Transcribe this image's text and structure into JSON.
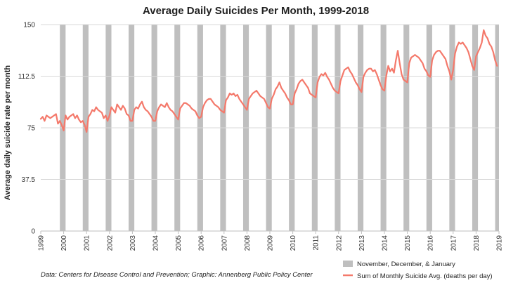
{
  "chart_data": {
    "type": "line",
    "title": "Average Daily Suicides Per Month, 1999-2018",
    "ylabel": "Average daily suicide rate per month",
    "xlabel": "",
    "ylim": [
      0,
      150
    ],
    "yticks": [
      0,
      37.5,
      75,
      112.5,
      150
    ],
    "ytick_labels": [
      "0",
      "37.5",
      "75",
      "112.5",
      "150"
    ],
    "x_range": [
      "1999-01",
      "2019-01"
    ],
    "xticks": [
      "1999",
      "2000",
      "2001",
      "2002",
      "2003",
      "2004",
      "2005",
      "2006",
      "2007",
      "2008",
      "2009",
      "2010",
      "2011",
      "2012",
      "2013",
      "2014",
      "2015",
      "2016",
      "2017",
      "2018",
      "2019"
    ],
    "grid": "horizontal",
    "legend_position": "bottom-right",
    "shaded_series": {
      "name": "November, December, & January",
      "color": "#bfbfbf",
      "periods": [
        [
          "1999-11",
          "2000-01"
        ],
        [
          "2000-11",
          "2001-01"
        ],
        [
          "2001-11",
          "2002-01"
        ],
        [
          "2002-11",
          "2003-01"
        ],
        [
          "2003-11",
          "2004-01"
        ],
        [
          "2004-11",
          "2005-01"
        ],
        [
          "2005-11",
          "2006-01"
        ],
        [
          "2006-11",
          "2007-01"
        ],
        [
          "2007-11",
          "2008-01"
        ],
        [
          "2008-11",
          "2009-01"
        ],
        [
          "2009-11",
          "2010-01"
        ],
        [
          "2010-11",
          "2011-01"
        ],
        [
          "2011-11",
          "2012-01"
        ],
        [
          "2012-11",
          "2013-01"
        ],
        [
          "2013-11",
          "2014-01"
        ],
        [
          "2014-11",
          "2015-01"
        ],
        [
          "2015-11",
          "2016-01"
        ],
        [
          "2016-11",
          "2017-01"
        ],
        [
          "2017-11",
          "2018-01"
        ],
        [
          "2018-11",
          "2019-01"
        ]
      ]
    },
    "series": [
      {
        "name": "Sum of Monthly Suicide Avg. (deaths per day)",
        "color": "#f4796b",
        "start": "1999-01",
        "values": [
          81.5,
          83,
          80,
          84,
          83,
          82,
          83,
          84,
          85,
          78,
          80,
          77,
          73,
          84,
          81,
          83,
          84,
          85,
          82,
          84,
          81,
          79,
          80,
          77,
          72,
          83,
          85,
          88,
          87,
          90,
          88,
          87,
          86,
          82,
          84,
          80,
          84,
          90,
          88,
          86,
          92,
          90,
          88,
          91,
          89,
          85,
          84,
          80,
          80,
          88,
          90,
          89,
          92,
          94,
          90,
          88,
          87,
          85,
          83,
          80,
          80,
          87,
          90,
          92,
          91,
          90,
          93,
          90,
          88,
          87,
          85,
          83,
          81,
          89,
          91,
          93,
          93,
          92,
          91,
          89,
          88,
          87,
          84,
          82,
          83,
          90,
          93,
          95,
          96,
          96,
          94,
          92,
          91,
          90,
          88,
          87,
          86,
          95,
          97,
          100,
          99,
          100,
          98,
          99,
          96,
          94,
          92,
          90,
          88,
          96,
          98,
          100,
          101,
          102,
          100,
          98,
          97,
          96,
          93,
          90,
          89,
          96,
          99,
          103,
          105,
          108,
          104,
          102,
          100,
          97,
          95,
          92,
          92,
          100,
          103,
          107,
          109,
          110,
          108,
          106,
          104,
          100,
          99,
          98,
          97,
          108,
          112,
          114,
          113,
          115,
          112,
          110,
          107,
          104,
          102,
          101,
          100,
          109,
          113,
          117,
          118,
          119,
          116,
          114,
          111,
          108,
          106,
          103,
          101,
          112,
          115,
          117,
          118,
          118,
          116,
          117,
          114,
          110,
          106,
          103,
          102,
          113,
          120,
          116,
          118,
          115,
          124,
          131,
          122,
          114,
          110,
          109,
          108,
          122,
          126,
          127,
          128,
          127,
          126,
          124,
          122,
          118,
          116,
          113,
          112,
          124,
          128,
          130,
          131,
          131,
          129,
          127,
          125,
          120,
          116,
          110,
          117,
          129,
          134,
          137,
          136,
          137,
          135,
          133,
          130,
          125,
          120,
          117,
          127,
          130,
          133,
          137,
          146,
          142,
          140,
          136,
          134,
          130,
          124,
          120
        ]
      }
    ],
    "source": "Data: Centers for Disease Control and Prevention; Graphic: Annenberg Public Policy Center"
  }
}
